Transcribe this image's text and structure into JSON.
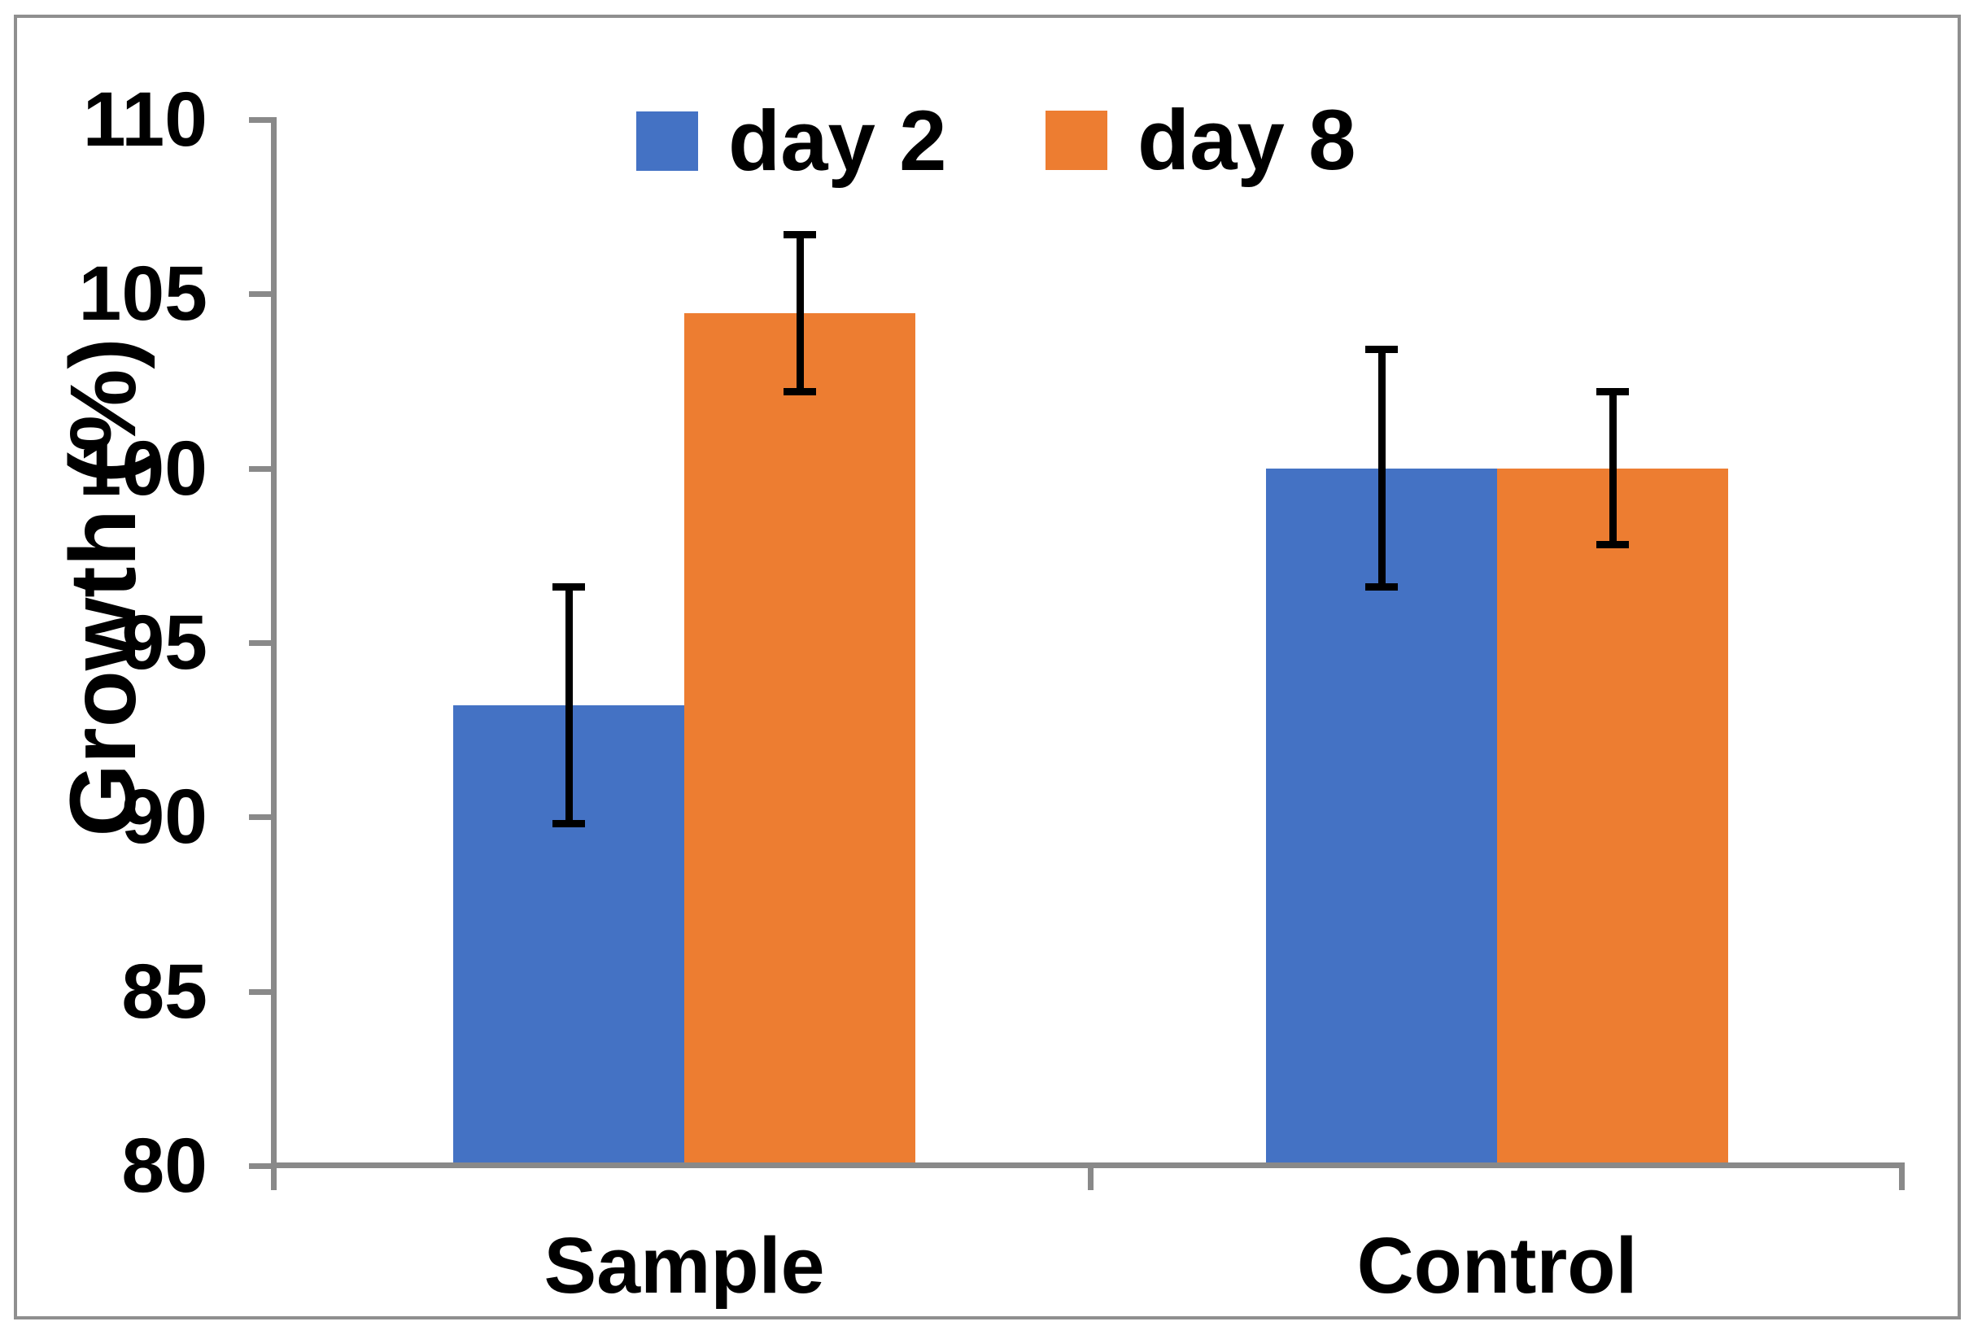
{
  "figure": {
    "background": "#ffffff",
    "border_color": "#8f8f8f"
  },
  "chart_data": {
    "type": "bar",
    "title": "",
    "categories": [
      "Sample",
      "Control"
    ],
    "series": [
      {
        "name": "day 2",
        "color": "#4472C4",
        "values": [
          93.2,
          100
        ],
        "error": [
          3.4,
          3.4
        ]
      },
      {
        "name": "day 8",
        "color": "#ED7D31",
        "values": [
          104.45,
          100
        ],
        "error": [
          2.25,
          2.2
        ]
      }
    ],
    "xlabel": "",
    "ylabel": "Growth (%)",
    "ylim": [
      80,
      110
    ],
    "yticks": [
      110,
      105,
      100,
      95,
      90,
      85,
      80
    ],
    "ytick_step": 5,
    "grid": false,
    "legend_position": "top",
    "axis_color": "#898989",
    "error_bar_color": "#000000",
    "text_color": "#000000"
  }
}
